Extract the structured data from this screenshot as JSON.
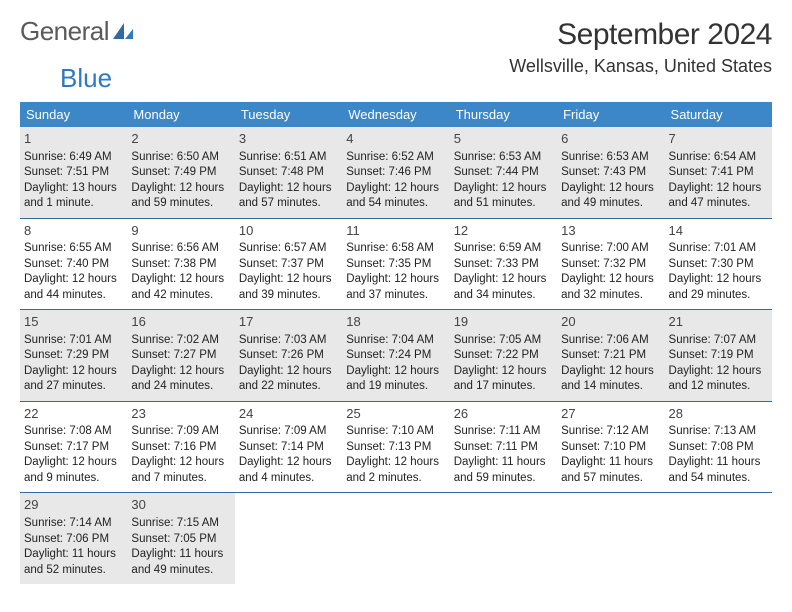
{
  "logo": {
    "text_general": "General",
    "text_blue": "Blue"
  },
  "title": "September 2024",
  "location": "Wellsville, Kansas, United States",
  "colors": {
    "header_bg": "#3b87c8",
    "header_text": "#ffffff",
    "row_border": "#2f6aa0",
    "shaded_bg": "#e8e8e8",
    "text": "#222222",
    "logo_gray": "#5a5a5a",
    "logo_blue": "#2f78c3"
  },
  "day_headers": [
    "Sunday",
    "Monday",
    "Tuesday",
    "Wednesday",
    "Thursday",
    "Friday",
    "Saturday"
  ],
  "weeks": [
    {
      "shaded": true,
      "cells": [
        {
          "n": "1",
          "sr": "6:49 AM",
          "ss": "7:51 PM",
          "dl": "13 hours and 1 minute."
        },
        {
          "n": "2",
          "sr": "6:50 AM",
          "ss": "7:49 PM",
          "dl": "12 hours and 59 minutes."
        },
        {
          "n": "3",
          "sr": "6:51 AM",
          "ss": "7:48 PM",
          "dl": "12 hours and 57 minutes."
        },
        {
          "n": "4",
          "sr": "6:52 AM",
          "ss": "7:46 PM",
          "dl": "12 hours and 54 minutes."
        },
        {
          "n": "5",
          "sr": "6:53 AM",
          "ss": "7:44 PM",
          "dl": "12 hours and 51 minutes."
        },
        {
          "n": "6",
          "sr": "6:53 AM",
          "ss": "7:43 PM",
          "dl": "12 hours and 49 minutes."
        },
        {
          "n": "7",
          "sr": "6:54 AM",
          "ss": "7:41 PM",
          "dl": "12 hours and 47 minutes."
        }
      ]
    },
    {
      "shaded": false,
      "cells": [
        {
          "n": "8",
          "sr": "6:55 AM",
          "ss": "7:40 PM",
          "dl": "12 hours and 44 minutes."
        },
        {
          "n": "9",
          "sr": "6:56 AM",
          "ss": "7:38 PM",
          "dl": "12 hours and 42 minutes."
        },
        {
          "n": "10",
          "sr": "6:57 AM",
          "ss": "7:37 PM",
          "dl": "12 hours and 39 minutes."
        },
        {
          "n": "11",
          "sr": "6:58 AM",
          "ss": "7:35 PM",
          "dl": "12 hours and 37 minutes."
        },
        {
          "n": "12",
          "sr": "6:59 AM",
          "ss": "7:33 PM",
          "dl": "12 hours and 34 minutes."
        },
        {
          "n": "13",
          "sr": "7:00 AM",
          "ss": "7:32 PM",
          "dl": "12 hours and 32 minutes."
        },
        {
          "n": "14",
          "sr": "7:01 AM",
          "ss": "7:30 PM",
          "dl": "12 hours and 29 minutes."
        }
      ]
    },
    {
      "shaded": true,
      "cells": [
        {
          "n": "15",
          "sr": "7:01 AM",
          "ss": "7:29 PM",
          "dl": "12 hours and 27 minutes."
        },
        {
          "n": "16",
          "sr": "7:02 AM",
          "ss": "7:27 PM",
          "dl": "12 hours and 24 minutes."
        },
        {
          "n": "17",
          "sr": "7:03 AM",
          "ss": "7:26 PM",
          "dl": "12 hours and 22 minutes."
        },
        {
          "n": "18",
          "sr": "7:04 AM",
          "ss": "7:24 PM",
          "dl": "12 hours and 19 minutes."
        },
        {
          "n": "19",
          "sr": "7:05 AM",
          "ss": "7:22 PM",
          "dl": "12 hours and 17 minutes."
        },
        {
          "n": "20",
          "sr": "7:06 AM",
          "ss": "7:21 PM",
          "dl": "12 hours and 14 minutes."
        },
        {
          "n": "21",
          "sr": "7:07 AM",
          "ss": "7:19 PM",
          "dl": "12 hours and 12 minutes."
        }
      ]
    },
    {
      "shaded": false,
      "cells": [
        {
          "n": "22",
          "sr": "7:08 AM",
          "ss": "7:17 PM",
          "dl": "12 hours and 9 minutes."
        },
        {
          "n": "23",
          "sr": "7:09 AM",
          "ss": "7:16 PM",
          "dl": "12 hours and 7 minutes."
        },
        {
          "n": "24",
          "sr": "7:09 AM",
          "ss": "7:14 PM",
          "dl": "12 hours and 4 minutes."
        },
        {
          "n": "25",
          "sr": "7:10 AM",
          "ss": "7:13 PM",
          "dl": "12 hours and 2 minutes."
        },
        {
          "n": "26",
          "sr": "7:11 AM",
          "ss": "7:11 PM",
          "dl": "11 hours and 59 minutes."
        },
        {
          "n": "27",
          "sr": "7:12 AM",
          "ss": "7:10 PM",
          "dl": "11 hours and 57 minutes."
        },
        {
          "n": "28",
          "sr": "7:13 AM",
          "ss": "7:08 PM",
          "dl": "11 hours and 54 minutes."
        }
      ]
    },
    {
      "shaded": true,
      "cells": [
        {
          "n": "29",
          "sr": "7:14 AM",
          "ss": "7:06 PM",
          "dl": "11 hours and 52 minutes."
        },
        {
          "n": "30",
          "sr": "7:15 AM",
          "ss": "7:05 PM",
          "dl": "11 hours and 49 minutes."
        },
        null,
        null,
        null,
        null,
        null
      ]
    }
  ],
  "labels": {
    "sunrise": "Sunrise: ",
    "sunset": "Sunset: ",
    "daylight": "Daylight: "
  }
}
